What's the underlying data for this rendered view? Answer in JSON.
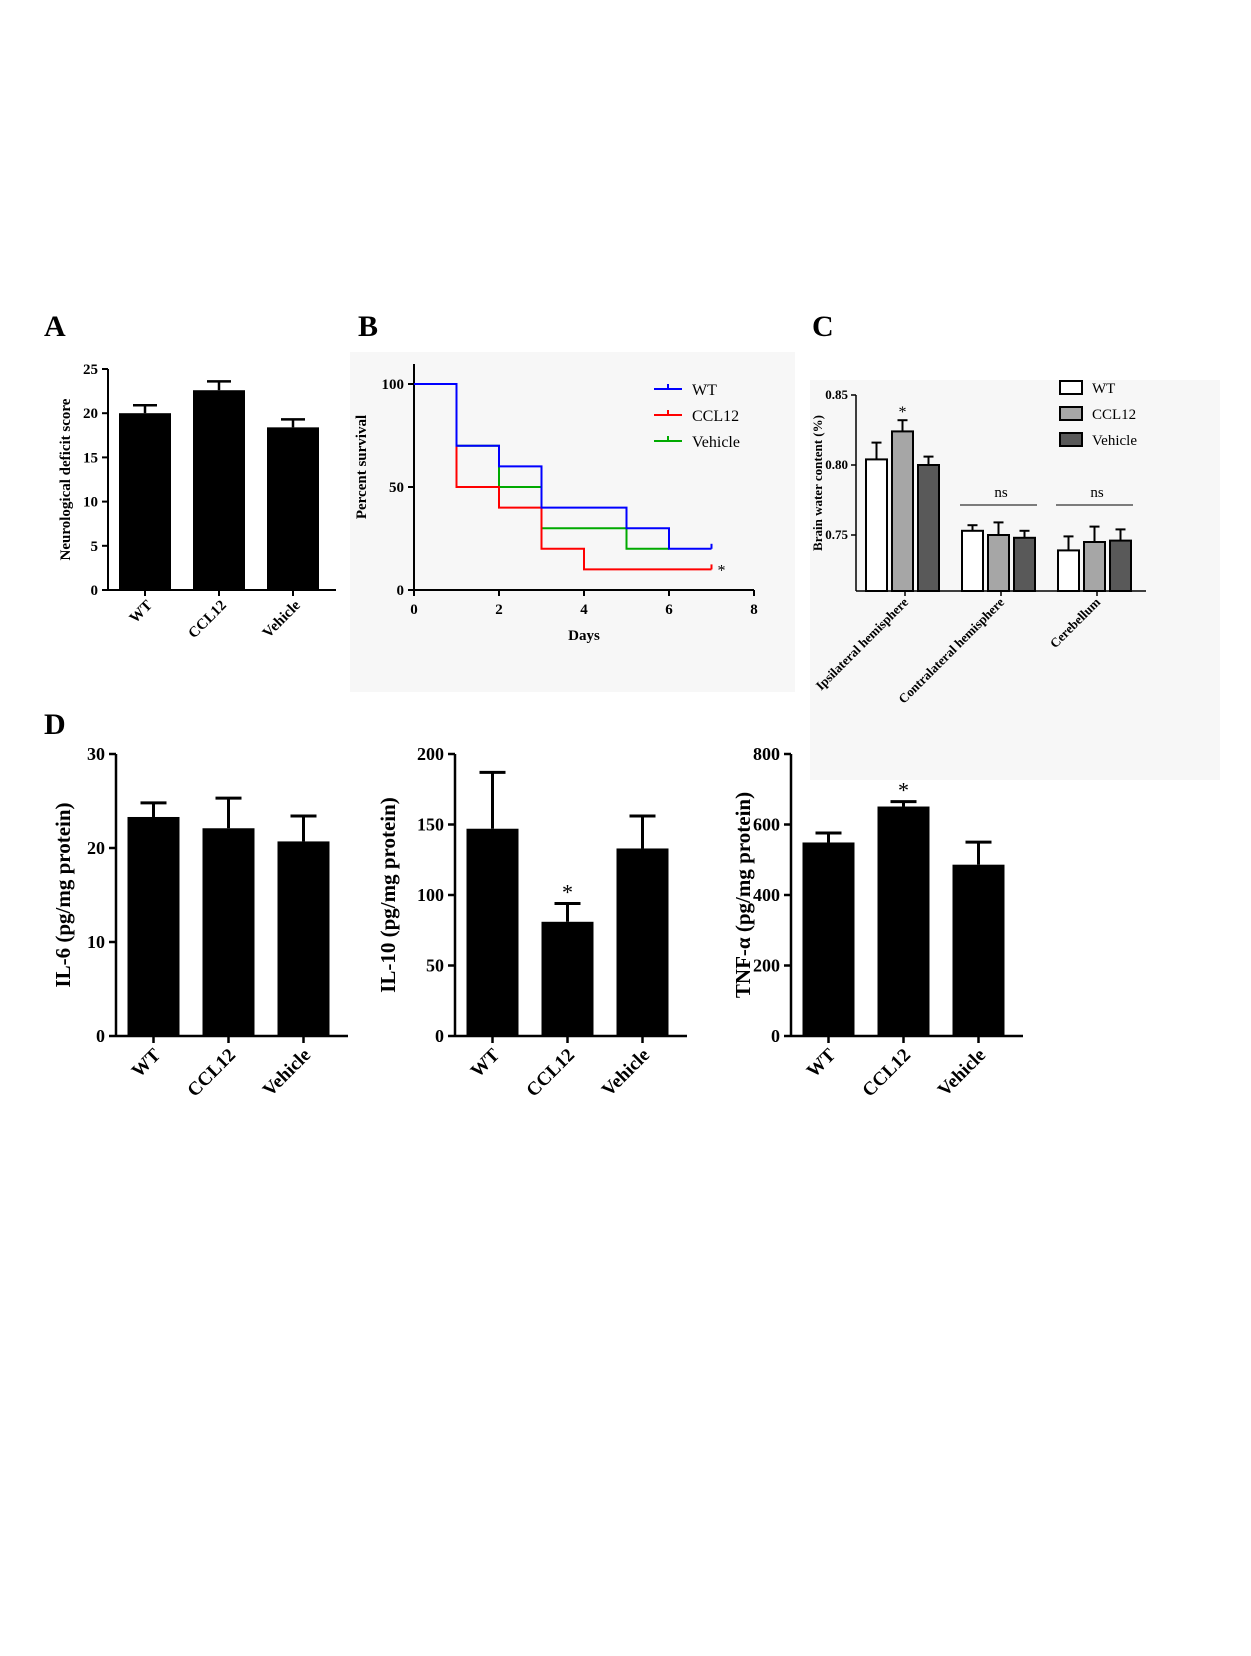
{
  "panels": {
    "A": "A",
    "B": "B",
    "C": "C",
    "D": "D"
  },
  "chart_data": [
    {
      "id": "A",
      "type": "bar",
      "ylabel": "Neurological deficit score",
      "ylim": [
        0,
        25
      ],
      "yticks": [
        0,
        5,
        10,
        15,
        20,
        25
      ],
      "categories": [
        "WT",
        "CCL12",
        "Vehicle"
      ],
      "values": [
        20,
        22.6,
        18.4
      ],
      "errors": [
        0.9,
        1.0,
        0.9
      ],
      "colors": [
        "#000000"
      ]
    },
    {
      "id": "B",
      "type": "line",
      "xlabel": "Days",
      "ylabel": "Percent survival",
      "xlim": [
        0,
        8
      ],
      "ylim": [
        0,
        100
      ],
      "xticks": [
        0,
        2,
        4,
        6,
        8
      ],
      "yticks": [
        0,
        50,
        100
      ],
      "series": [
        {
          "name": "WT",
          "color": "#0000ff",
          "x": [
            0,
            1,
            2,
            3,
            5,
            6,
            7
          ],
          "y": [
            100,
            70,
            60,
            40,
            30,
            20,
            20
          ]
        },
        {
          "name": "CCL12",
          "color": "#ff0000",
          "x": [
            0,
            1,
            2,
            3,
            4,
            7
          ],
          "y": [
            100,
            50,
            40,
            20,
            10,
            10
          ]
        },
        {
          "name": "Vehicle",
          "color": "#00aa00",
          "x": [
            0,
            1,
            2,
            3,
            5,
            6
          ],
          "y": [
            100,
            70,
            50,
            30,
            20,
            20
          ]
        }
      ],
      "annotation": "*"
    },
    {
      "id": "C",
      "type": "bar",
      "ylabel": "Brain water content (%)",
      "ylim": [
        0.71,
        0.85
      ],
      "yticks": [
        0.75,
        0.8,
        0.85
      ],
      "ytick_labels": [
        "0.75",
        "0.80",
        "0.85"
      ],
      "categories": [
        "Ipsilateral hemisphere",
        "Contralateral hemisphere",
        "Cerebellum"
      ],
      "series": [
        {
          "name": "WT",
          "color": "#ffffff",
          "values": [
            0.804,
            0.753,
            0.739
          ],
          "errors": [
            0.012,
            0.004,
            0.01
          ]
        },
        {
          "name": "CCL12",
          "color": "#a6a6a6",
          "values": [
            0.824,
            0.75,
            0.745
          ],
          "errors": [
            0.008,
            0.009,
            0.011
          ]
        },
        {
          "name": "Vehicle",
          "color": "#595959",
          "values": [
            0.8,
            0.748,
            0.746
          ],
          "errors": [
            0.006,
            0.005,
            0.008
          ]
        }
      ],
      "annotations": [
        "*",
        "ns",
        "ns"
      ]
    },
    {
      "id": "D1",
      "type": "bar",
      "ylabel": "IL-6 (pg/mg protein)",
      "ylim": [
        0,
        30
      ],
      "yticks": [
        0,
        10,
        20,
        30
      ],
      "categories": [
        "WT",
        "CCL12",
        "Vehicle"
      ],
      "values": [
        23.3,
        22.1,
        20.7
      ],
      "errors": [
        1.5,
        3.2,
        2.7
      ]
    },
    {
      "id": "D2",
      "type": "bar",
      "ylabel": "IL-10 (pg/mg protein)",
      "ylim": [
        0,
        200
      ],
      "yticks": [
        0,
        50,
        100,
        150,
        200
      ],
      "categories": [
        "WT",
        "CCL12",
        "Vehicle"
      ],
      "values": [
        147,
        81,
        133
      ],
      "errors": [
        40,
        13,
        23
      ],
      "annotation": "*"
    },
    {
      "id": "D3",
      "type": "bar",
      "ylabel": "TNF-α  (pg/mg protein)",
      "ylim": [
        0,
        800
      ],
      "yticks": [
        0,
        200,
        400,
        600,
        800
      ],
      "categories": [
        "WT",
        "CCL12",
        "Vehicle"
      ],
      "values": [
        549,
        651,
        486
      ],
      "errors": [
        27,
        14,
        64
      ],
      "annotation": "*"
    }
  ]
}
